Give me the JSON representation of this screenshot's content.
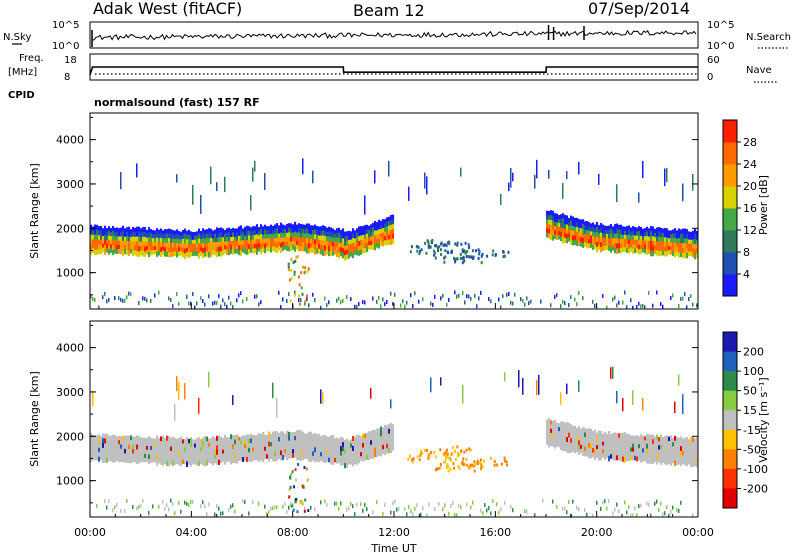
{
  "header": {
    "station": "Adak West (fitACF)",
    "beam": "Beam 12",
    "date": "07/Sep/2014"
  },
  "panels": {
    "nsky_label": "N.Sky",
    "nsearch_label": "N.Search",
    "nsky_ticks": [
      "10^5",
      "10^0"
    ],
    "nsearch_ticks": [
      "10^5",
      "10^0"
    ],
    "freq_label_1": "Freq.",
    "freq_label_2": "[MHz]",
    "freq_ticks": [
      "18",
      "8"
    ],
    "nave_label": "Nave",
    "nave_ticks": [
      "60",
      "0"
    ],
    "cpid_label": "CPID",
    "cpid_value": "normalsound (fast) 157 RF"
  },
  "chart_data": [
    {
      "type": "line",
      "name": "frequency",
      "x_hours": [
        0,
        0.1,
        10,
        10.01,
        18,
        18.01,
        24
      ],
      "y_mhz": [
        10,
        13,
        13,
        11,
        11,
        13,
        13
      ],
      "ylim": [
        8,
        18
      ]
    },
    {
      "type": "heatmap",
      "name": "power",
      "ylabel": "Slant Range [km]",
      "yticks": [
        "1000",
        "2000",
        "3000",
        "4000"
      ],
      "ylim": [
        180,
        4600
      ],
      "colorbar_label": "Power [dB]",
      "colorbar_ticks": [
        "4",
        "8",
        "12",
        "16",
        "20",
        "24",
        "28"
      ],
      "colorbar_colors": [
        "#1a1aff",
        "#1f4fb0",
        "#2e7a5a",
        "#44a844",
        "#d8d000",
        "#ff9a00",
        "#ff6a00",
        "#ff2000"
      ],
      "colorbar_range": [
        0,
        32
      ]
    },
    {
      "type": "heatmap",
      "name": "velocity",
      "ylabel": "Slant Range [km]",
      "yticks": [
        "1000",
        "2000",
        "3000",
        "4000"
      ],
      "ylim": [
        180,
        4600
      ],
      "xlabel": "Time UT",
      "xticks": [
        "00:00",
        "04:00",
        "08:00",
        "12:00",
        "16:00",
        "20:00",
        "00:00"
      ],
      "colorbar_label": "Velocity [m s⁻¹]",
      "colorbar_ticks": [
        "200",
        "100",
        "50",
        "15",
        "-15",
        "-50",
        "-100",
        "-200"
      ],
      "colorbar_colors": [
        "#1a1ab0",
        "#2060c0",
        "#2e8a4a",
        "#88cc44",
        "#c0c0c0",
        "#ffc000",
        "#ff8000",
        "#ff3000",
        "#e00000"
      ]
    }
  ]
}
